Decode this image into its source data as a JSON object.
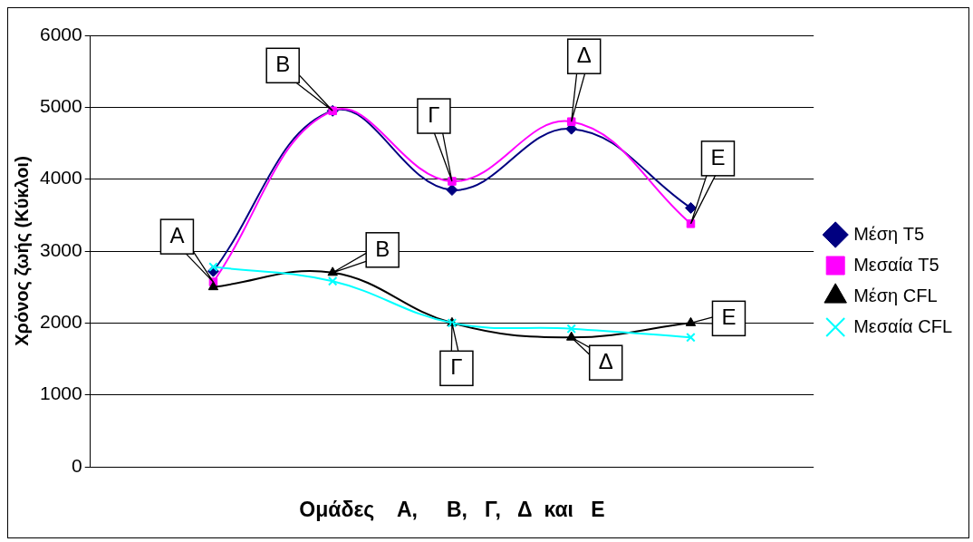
{
  "chart_data": {
    "type": "line",
    "ylabel": "Χρόνος ζωής (Κύκλοι)",
    "xlabel": "Ομάδες    Α,     Β,   Γ,   Δ  και   Ε",
    "categories": [
      null,
      null,
      null,
      null,
      null
    ],
    "ylim": [
      0,
      6000
    ],
    "yticks": [
      0,
      1000,
      2000,
      3000,
      4000,
      5000,
      6000
    ],
    "grid": "y",
    "legend": "right",
    "series": [
      {
        "name": "Μέση T5",
        "color": "#000080",
        "marker": "diamond",
        "values": [
          2720,
          4950,
          3850,
          4700,
          3600
        ]
      },
      {
        "name": "Μεσαία T5",
        "color": "#ff00ff",
        "marker": "square",
        "values": [
          2570,
          4950,
          3970,
          4800,
          3380
        ]
      },
      {
        "name": "Μέση CFL",
        "color": "#000000",
        "marker": "triangle",
        "values": [
          2500,
          2700,
          2000,
          1800,
          2000
        ]
      },
      {
        "name": "Μεσαία CFL",
        "color": "#00ffff",
        "marker": "cross",
        "values": [
          2780,
          2580,
          2000,
          1920,
          1800
        ]
      }
    ],
    "annotations": [
      "Α",
      "Β",
      "Γ",
      "Δ",
      "Ε",
      "Β",
      "Γ",
      "Δ",
      "Ε"
    ]
  }
}
